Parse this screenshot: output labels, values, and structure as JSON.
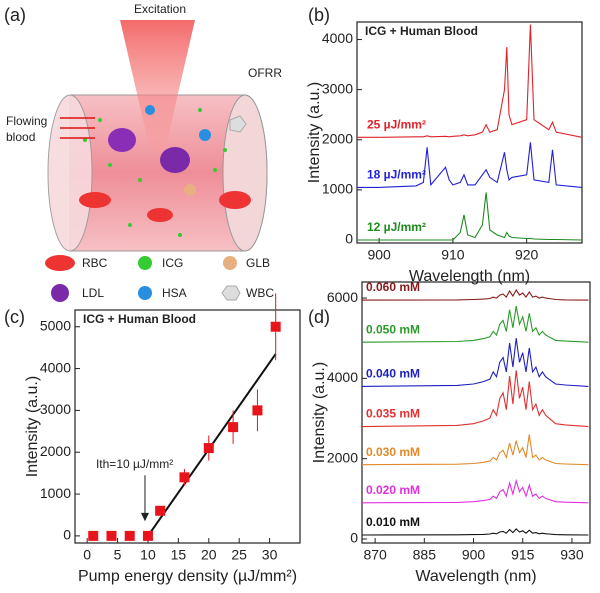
{
  "panel_labels": [
    "(a)",
    "(b)",
    "(c)",
    "(d)"
  ],
  "diagram": {
    "excitation": "Excitation",
    "ofrr": "OFRR",
    "flow": [
      "Flowing",
      "blood"
    ],
    "legend": [
      "RBC",
      "ICG",
      "GLB",
      "LDL",
      "HSA",
      "WBC"
    ]
  },
  "chart_data": [
    {
      "type": "line",
      "title": "ICG + Human Blood",
      "x_label": "Wavelength (nm)",
      "y_label": "Intensity (a.u.)",
      "xlim": [
        897,
        927.5
      ],
      "xticks": [
        900,
        910,
        920
      ],
      "ylim": [
        -60,
        4350
      ],
      "yticks": [
        0,
        1000,
        2000,
        3000,
        4000
      ],
      "x": [
        897,
        900,
        905,
        906,
        906.5,
        907,
        909,
        909.5,
        910,
        911,
        911.5,
        912,
        913,
        914,
        914.5,
        915,
        916,
        917,
        917.3,
        917.6,
        918,
        920,
        920.5,
        921,
        923,
        923.5,
        924,
        927.5
      ],
      "series": [
        {
          "name": "25 µJ/mm²",
          "color": "#e0232a",
          "values": [
            2050,
            2050,
            2060,
            2060,
            2080,
            2060,
            2070,
            2060,
            2070,
            2080,
            2100,
            2080,
            2100,
            2150,
            2300,
            2150,
            2200,
            3000,
            3850,
            2500,
            2300,
            2400,
            4300,
            2400,
            2200,
            2350,
            2150,
            2050
          ]
        },
        {
          "name": "18 µJ/mm²",
          "color": "#1f1fd6",
          "values": [
            1050,
            1050,
            1080,
            1150,
            1850,
            1100,
            1450,
            1200,
            1100,
            1150,
            1300,
            1100,
            1100,
            1300,
            1400,
            1250,
            1150,
            1750,
            1400,
            1200,
            1250,
            1300,
            1950,
            1200,
            1150,
            1800,
            1100,
            1050
          ]
        },
        {
          "name": "12 µJ/mm²",
          "color": "#1e8a1e",
          "values": [
            0,
            0,
            0,
            0,
            0,
            0,
            0,
            0,
            0,
            150,
            500,
            100,
            50,
            300,
            950,
            200,
            100,
            50,
            150,
            80,
            50,
            30,
            30,
            20,
            10,
            10,
            10,
            0
          ]
        }
      ]
    },
    {
      "type": "scatter",
      "title": "ICG + Human Blood",
      "x_label": "Pump energy density (µJ/mm²)",
      "y_label": "Intensity (a.u.)",
      "xlim": [
        -2,
        35
      ],
      "xticks": [
        0,
        5,
        10,
        15,
        20,
        25,
        30
      ],
      "ylim": [
        -170,
        5400
      ],
      "yticks": [
        0,
        1000,
        2000,
        3000,
        4000,
        5000
      ],
      "color": "#e8141c",
      "x": [
        1,
        4,
        7,
        10,
        12,
        16,
        20,
        24,
        28,
        31
      ],
      "values": [
        0,
        0,
        0,
        0,
        600,
        1400,
        2100,
        2600,
        3000,
        5000
      ],
      "errors": [
        0,
        0,
        0,
        0,
        100,
        200,
        300,
        400,
        500,
        800
      ],
      "fit_line": {
        "x": [
          10,
          31
        ],
        "y": [
          0,
          4350
        ]
      },
      "annotation": "Ith=10 µJ/mm²"
    },
    {
      "type": "line",
      "x_label": "Wavelength (nm)",
      "y_label": "Intensity (a.u.)",
      "xlim": [
        866,
        935.5
      ],
      "xticks": [
        870,
        885,
        900,
        915,
        930
      ],
      "ylim": [
        -100,
        6400
      ],
      "yticks": [
        0,
        2000,
        4000,
        6000
      ],
      "x": [
        866,
        895,
        900,
        903,
        905,
        906,
        907,
        908,
        909,
        910,
        911,
        912,
        913,
        914,
        915,
        916,
        917,
        918,
        919,
        920,
        921,
        922,
        923,
        925,
        928,
        935
      ],
      "series": [
        {
          "name": "0.060 mM",
          "color": "#8b1a1a",
          "values": [
            5950,
            5955,
            5963,
            5975,
            5988,
            6025,
            6000,
            6075,
            6100,
            6025,
            6175,
            6050,
            6200,
            6075,
            6125,
            6025,
            6150,
            6025,
            6050,
            6000,
            6025,
            6000,
            5988,
            5963,
            5955,
            5950
          ]
        },
        {
          "name": "0.050 mM",
          "color": "#2a9a2a",
          "values": [
            4900,
            4918,
            4945,
            4990,
            5035,
            5170,
            5080,
            5350,
            5440,
            5170,
            5710,
            5260,
            5800,
            5350,
            5530,
            5170,
            5620,
            5170,
            5260,
            5080,
            5170,
            5080,
            5035,
            4945,
            4927,
            4900
          ]
        },
        {
          "name": "0.040 mM",
          "color": "#2020c0",
          "values": [
            3800,
            3824,
            3860,
            3920,
            3980,
            4160,
            4040,
            4400,
            4520,
            4160,
            4880,
            4280,
            5000,
            4400,
            4640,
            4160,
            4760,
            4160,
            4280,
            4040,
            4160,
            4040,
            3980,
            3860,
            3836,
            3800
          ]
        },
        {
          "name": "0.035 mM",
          "color": "#e03030",
          "values": [
            2800,
            2828,
            2870,
            2940,
            3010,
            3220,
            3080,
            3500,
            3640,
            3220,
            4060,
            3360,
            4200,
            3500,
            3780,
            3220,
            3920,
            3220,
            3360,
            3080,
            3220,
            3080,
            3010,
            2870,
            2842,
            2800
          ]
        },
        {
          "name": "0.030 mM",
          "color": "#e08a2a",
          "values": [
            1850,
            1862,
            1880,
            1910,
            1940,
            2030,
            1970,
            2150,
            2210,
            2030,
            2390,
            2090,
            2450,
            2150,
            2270,
            2030,
            2600,
            2030,
            2090,
            1970,
            2030,
            1970,
            1940,
            1880,
            1868,
            1850
          ]
        },
        {
          "name": "0.020 mM",
          "color": "#e030e0",
          "values": [
            900,
            911,
            928,
            955,
            983,
            1065,
            1010,
            1175,
            1230,
            1065,
            1395,
            1120,
            1450,
            1175,
            1285,
            1065,
            1340,
            1065,
            1120,
            1010,
            1065,
            1010,
            983,
            928,
            917,
            900
          ]
        },
        {
          "name": "0.010 mM",
          "color": "#111111",
          "values": [
            100,
            103,
            108,
            115,
            123,
            145,
            130,
            175,
            190,
            145,
            235,
            160,
            250,
            175,
            205,
            145,
            220,
            145,
            160,
            130,
            145,
            130,
            123,
            108,
            105,
            100
          ]
        }
      ]
    }
  ]
}
